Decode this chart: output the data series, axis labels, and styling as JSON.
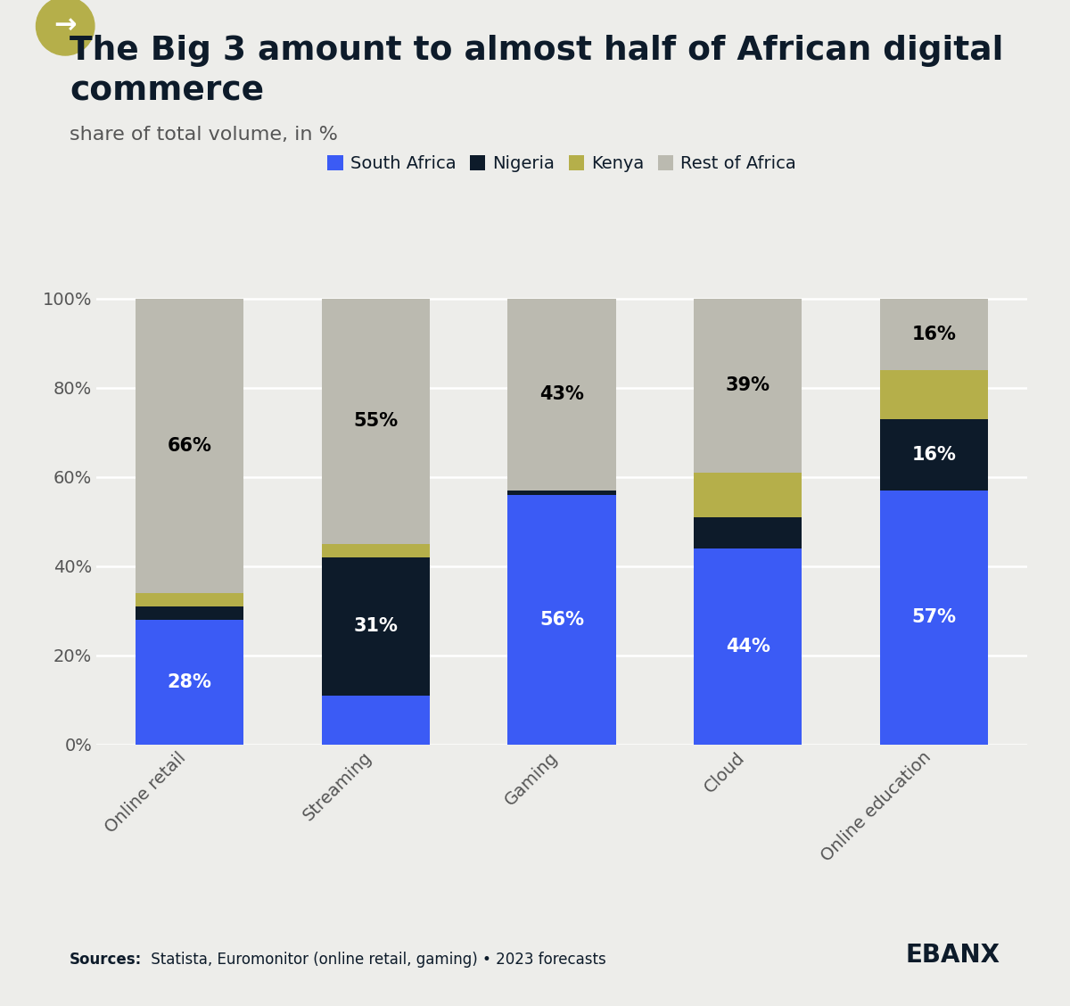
{
  "title_line1": "The Big 3 amount to almost half of African digital",
  "title_line2": "commerce",
  "subtitle": "share of total volume, in %",
  "categories": [
    "Online retail",
    "Streaming",
    "Gaming",
    "Cloud",
    "Online education"
  ],
  "series": {
    "South Africa": [
      28,
      11,
      56,
      44,
      57
    ],
    "Nigeria": [
      3,
      31,
      1,
      7,
      16
    ],
    "Kenya": [
      3,
      3,
      0,
      10,
      11
    ],
    "Rest of Africa": [
      66,
      55,
      43,
      39,
      16
    ]
  },
  "colors": {
    "South Africa": "#3B5BF5",
    "Nigeria": "#0D1B2A",
    "Kenya": "#B5AF4A",
    "Rest of Africa": "#BBBAB0"
  },
  "bar_labels": {
    "South Africa": [
      "28%",
      "",
      "56%",
      "44%",
      "57%"
    ],
    "Nigeria": [
      "",
      "31%",
      "",
      "",
      "16%"
    ],
    "Kenya": [
      "",
      "",
      "",
      "",
      ""
    ],
    "Rest of Africa": [
      "66%",
      "55%",
      "43%",
      "39%",
      "16%"
    ]
  },
  "rest_label_color": "black",
  "background_color": "#EDEDEA",
  "sources_bold": "Sources:",
  "sources_rest": " Statista, Euromonitor (online retail, gaming) • 2023 forecasts",
  "logo_text": "EBANX",
  "yticks": [
    0,
    20,
    40,
    60,
    80,
    100
  ],
  "ytick_labels": [
    "0%",
    "20%",
    "40%",
    "60%",
    "80%",
    "100%"
  ],
  "icon_color": "#B5AF4A",
  "title_color": "#0D1B2A",
  "text_color": "#555555"
}
